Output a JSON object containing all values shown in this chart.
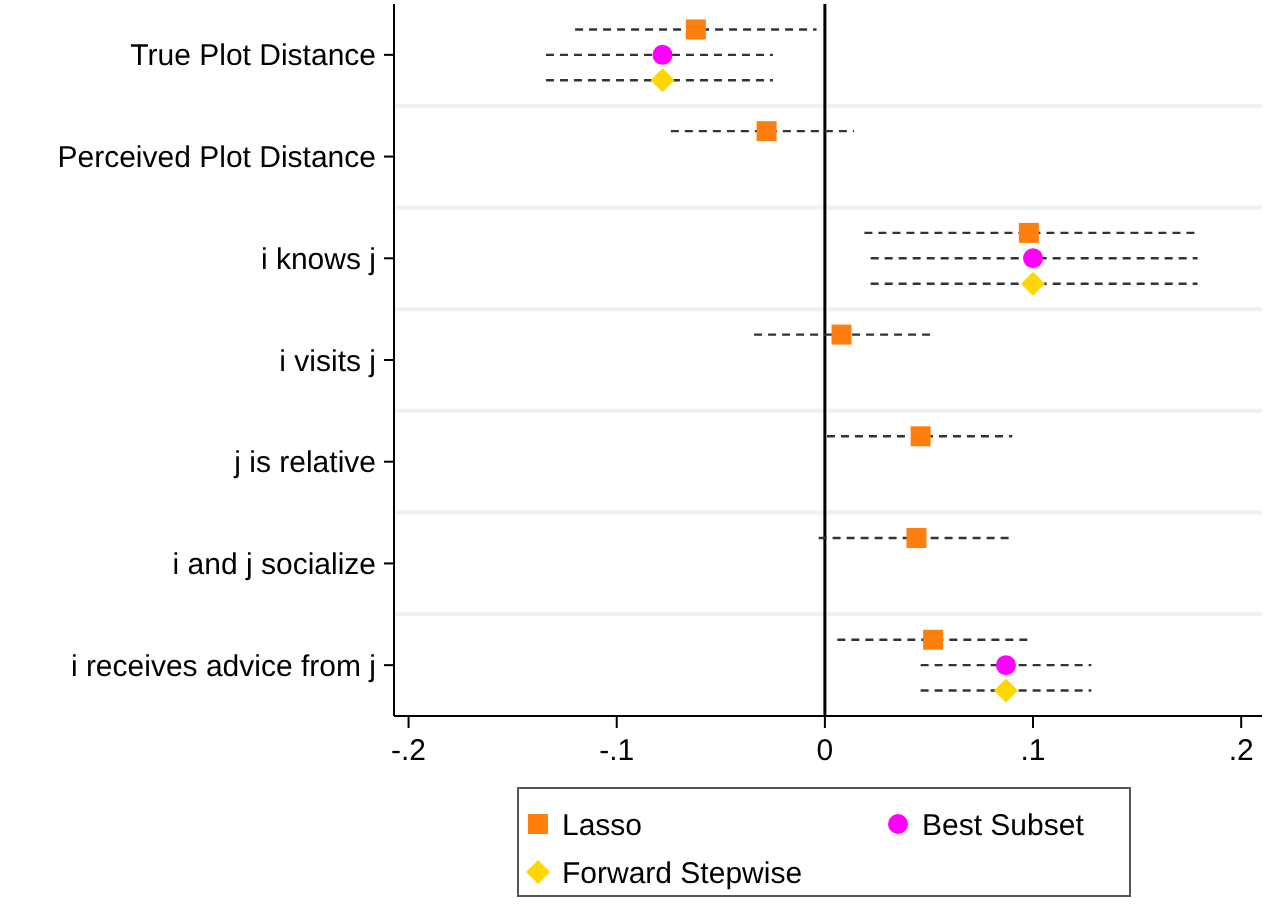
{
  "chart_data": {
    "type": "scatter",
    "orientation": "horizontal",
    "categories": [
      "True Plot Distance",
      "Perceived Plot Distance",
      "i knows j",
      "i visits j",
      "j is relative",
      "i and j socialize",
      "i receives advice from j"
    ],
    "xlim": [
      -0.207,
      0.21
    ],
    "xticks": [
      {
        "value": -0.2,
        "label": "-.2"
      },
      {
        "value": -0.1,
        "label": "-.1"
      },
      {
        "value": 0,
        "label": "0"
      },
      {
        "value": 0.1,
        "label": ".1"
      },
      {
        "value": 0.2,
        "label": ".2"
      }
    ],
    "grid": "y",
    "legend": "bottom",
    "line_style": "dashed",
    "ref_lines": [
      {
        "axis": "x",
        "value": 0,
        "color": "#000000"
      }
    ],
    "series": [
      {
        "name": "Lasso",
        "color": "#ff7f0e",
        "marker": "square",
        "values": [
          -0.062,
          -0.028,
          0.098,
          0.008,
          0.046,
          0.044,
          0.052
        ],
        "errors": [
          [
            -0.12,
            -0.004
          ],
          [
            -0.074,
            0.014
          ],
          [
            0.019,
            0.178
          ],
          [
            -0.034,
            0.052
          ],
          [
            0.001,
            0.09
          ],
          [
            -0.003,
            0.09
          ],
          [
            0.006,
            0.098
          ]
        ]
      },
      {
        "name": "Best Subset",
        "color": "#ff00ff",
        "marker": "circle",
        "values": [
          -0.078,
          null,
          0.1,
          null,
          null,
          null,
          0.087
        ],
        "errors": [
          [
            -0.134,
            -0.025
          ],
          null,
          [
            0.022,
            0.179
          ],
          null,
          null,
          null,
          [
            0.046,
            0.128
          ]
        ]
      },
      {
        "name": "Forward Stepwise",
        "color": "#ffd700",
        "marker": "diamond",
        "values": [
          -0.078,
          null,
          0.1,
          null,
          null,
          null,
          0.087
        ],
        "errors": [
          [
            -0.134,
            -0.025
          ],
          null,
          [
            0.022,
            0.179
          ],
          null,
          null,
          null,
          [
            0.046,
            0.128
          ]
        ]
      }
    ]
  }
}
